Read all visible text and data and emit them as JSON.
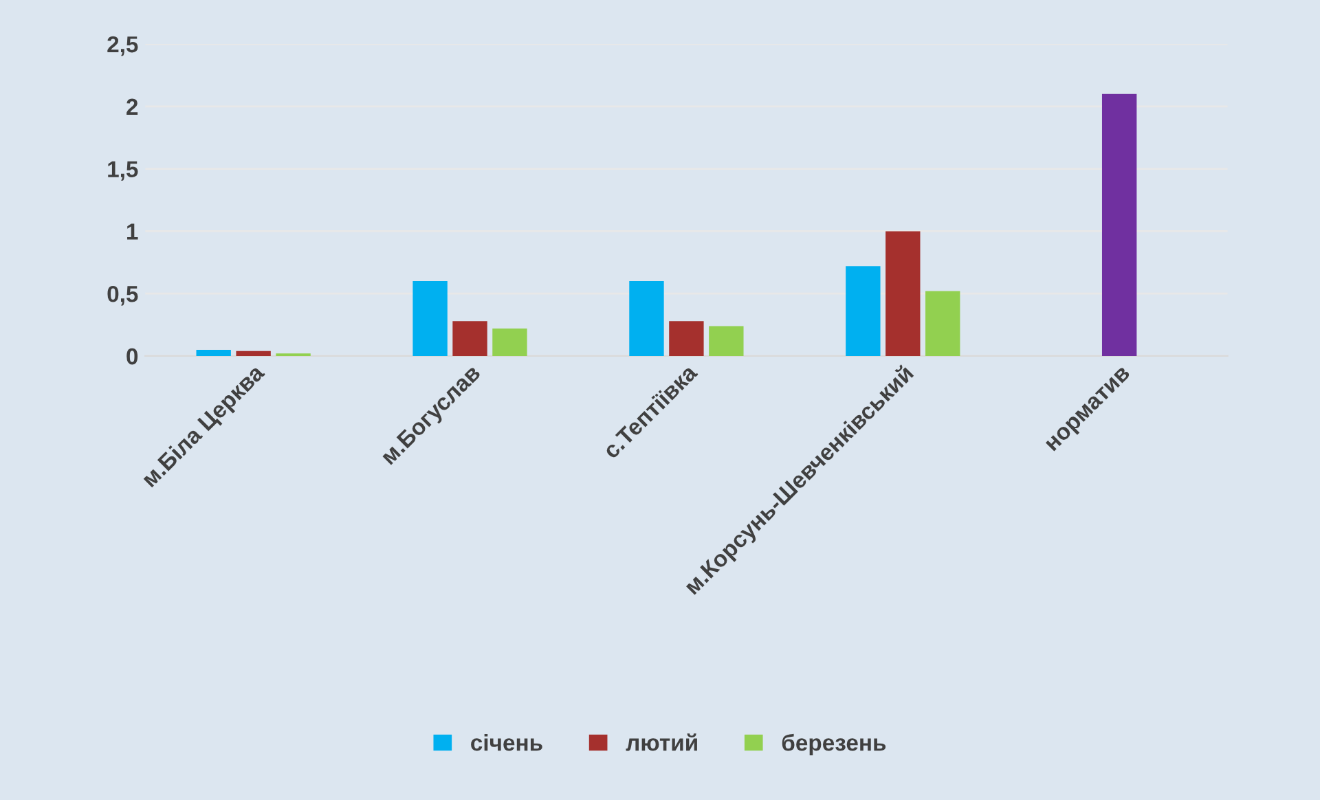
{
  "chart_data": {
    "type": "bar",
    "categories": [
      "м.Біла Церква",
      "м.Богуслав",
      "с.Тептіївка",
      "м.Корсунь-Шевченківський",
      "норматив"
    ],
    "series": [
      {
        "name": "січень",
        "color": "#00b0f0",
        "values": [
          0.05,
          0.6,
          0.6,
          0.72,
          null
        ]
      },
      {
        "name": "лютий",
        "color": "#a5302d",
        "values": [
          0.04,
          0.28,
          0.28,
          1.0,
          null
        ]
      },
      {
        "name": "березень",
        "color": "#92d050",
        "values": [
          0.02,
          0.22,
          0.24,
          0.52,
          null
        ]
      },
      {
        "color": "#7030a0",
        "values": [
          null,
          null,
          null,
          null,
          2.1
        ]
      }
    ],
    "ylim": [
      0,
      2.5
    ],
    "yticks": [
      {
        "value": 0,
        "label": "0"
      },
      {
        "value": 0.5,
        "label": "0,5"
      },
      {
        "value": 1,
        "label": "1"
      },
      {
        "value": 1.5,
        "label": "1,5"
      },
      {
        "value": 2,
        "label": "2"
      },
      {
        "value": 2.5,
        "label": "2,5"
      }
    ],
    "grid": "y",
    "legend": "bottom"
  }
}
